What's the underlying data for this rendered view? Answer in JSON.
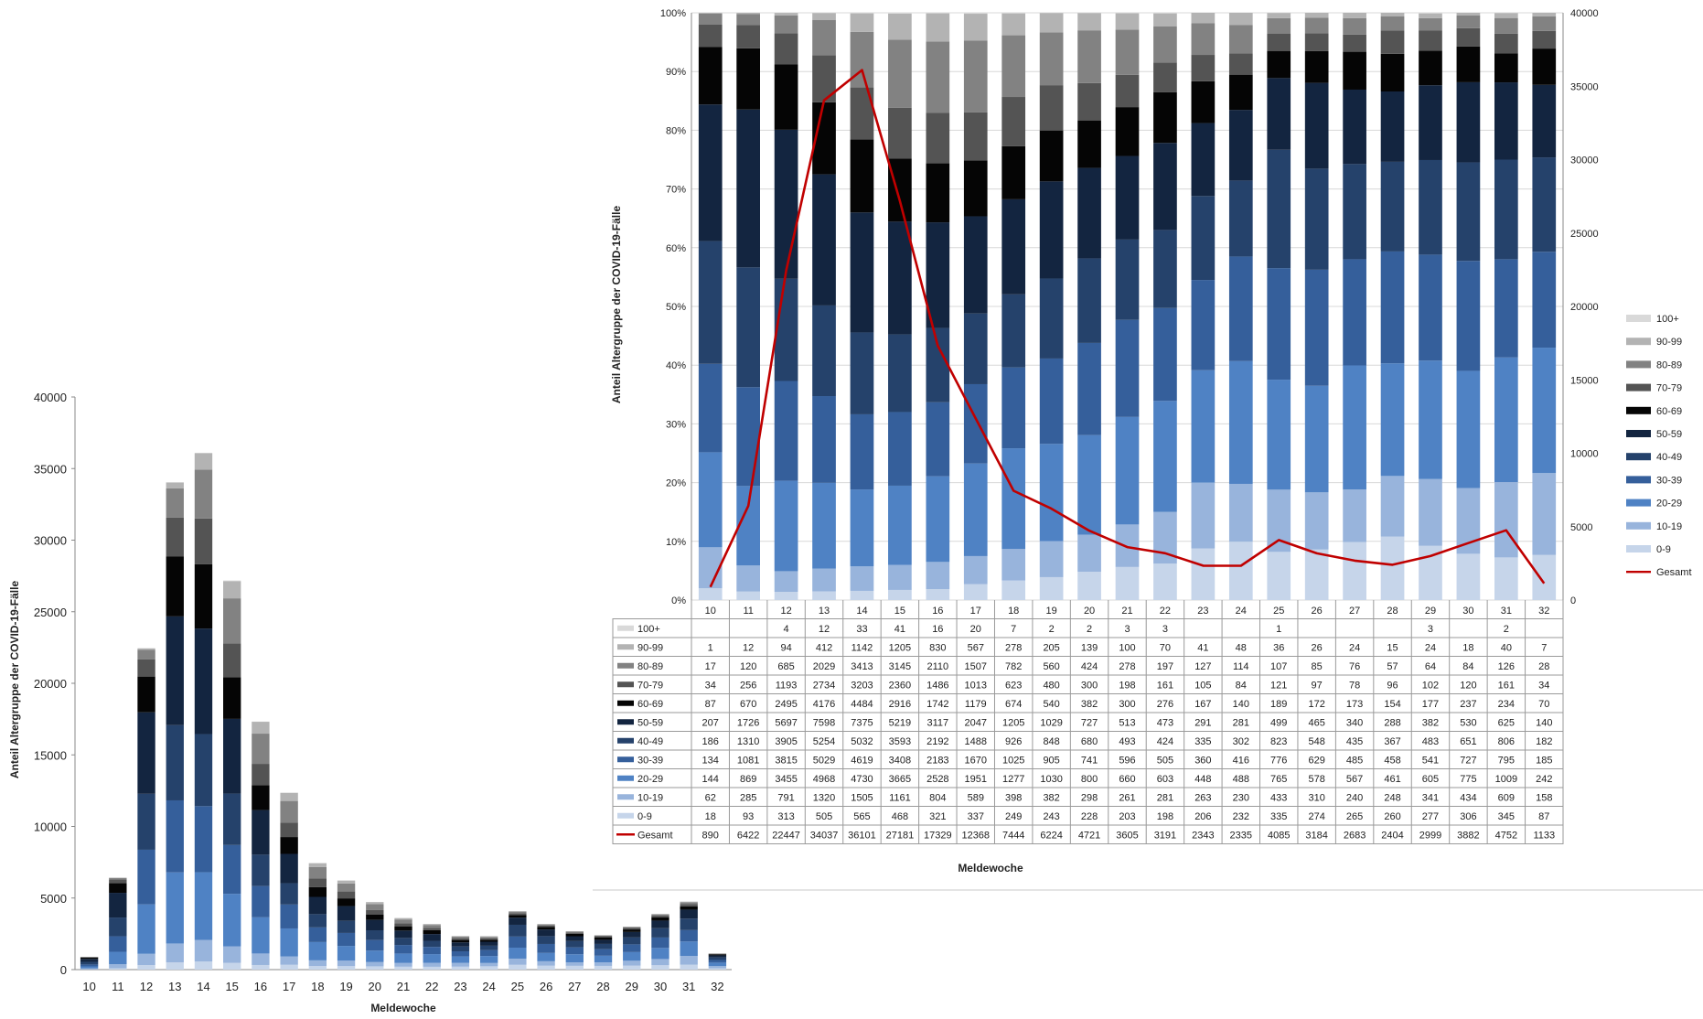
{
  "chart_data": [
    {
      "type": "bar",
      "stacked": true,
      "ylabel": "Anteil Altergruppe der COVID-19-Fälle",
      "xlabel": "Meldewoche",
      "ylim": [
        0,
        40000
      ],
      "yticks": [
        0,
        5000,
        10000,
        15000,
        20000,
        25000,
        30000,
        35000,
        40000
      ],
      "grid": false,
      "legend": "none",
      "categories": [
        "10",
        "11",
        "12",
        "13",
        "14",
        "15",
        "16",
        "17",
        "18",
        "19",
        "20",
        "21",
        "22",
        "23",
        "24",
        "25",
        "26",
        "27",
        "28",
        "29",
        "30",
        "31",
        "32"
      ],
      "series_ref": "shared_series"
    },
    {
      "type": "bar",
      "stacked": true,
      "normalized": true,
      "ylabel": "Anteil Altergruppe der COVID-19-Fälle",
      "xlabel": "Meldewoche",
      "ylim": [
        0,
        100
      ],
      "yticks": [
        "0%",
        "10%",
        "20%",
        "30%",
        "40%",
        "50%",
        "60%",
        "70%",
        "80%",
        "90%",
        "100%"
      ],
      "y2lim": [
        0,
        40000
      ],
      "y2ticks": [
        0,
        5000,
        10000,
        15000,
        20000,
        25000,
        30000,
        35000,
        40000
      ],
      "grid": true,
      "legend": "right",
      "data_table": true,
      "categories": [
        "10",
        "11",
        "12",
        "13",
        "14",
        "15",
        "16",
        "17",
        "18",
        "19",
        "20",
        "21",
        "22",
        "23",
        "24",
        "25",
        "26",
        "27",
        "28",
        "29",
        "30",
        "31",
        "32"
      ],
      "series": [
        {
          "name": "0-9",
          "color": "#c6d5ea",
          "values": [
            18,
            93,
            313,
            505,
            565,
            468,
            321,
            337,
            249,
            243,
            228,
            203,
            198,
            206,
            232,
            335,
            274,
            265,
            260,
            277,
            306,
            345,
            87
          ]
        },
        {
          "name": "10-19",
          "color": "#98b4dc",
          "values": [
            62,
            285,
            791,
            1320,
            1505,
            1161,
            804,
            589,
            398,
            382,
            298,
            261,
            281,
            263,
            230,
            433,
            310,
            240,
            248,
            341,
            434,
            609,
            158
          ]
        },
        {
          "name": "20-29",
          "color": "#4f82c4",
          "values": [
            144,
            869,
            3455,
            4968,
            4730,
            3665,
            2528,
            1951,
            1277,
            1030,
            800,
            660,
            603,
            448,
            488,
            765,
            578,
            567,
            461,
            605,
            775,
            1009,
            242
          ]
        },
        {
          "name": "30-39",
          "color": "#355f9b",
          "values": [
            134,
            1081,
            3815,
            5029,
            4619,
            3408,
            2183,
            1670,
            1025,
            905,
            741,
            596,
            505,
            360,
            416,
            776,
            629,
            485,
            458,
            541,
            727,
            795,
            185
          ]
        },
        {
          "name": "40-49",
          "color": "#25426b",
          "values": [
            186,
            1310,
            3905,
            5254,
            5032,
            3593,
            2192,
            1488,
            926,
            848,
            680,
            493,
            424,
            335,
            302,
            823,
            548,
            435,
            367,
            483,
            651,
            806,
            182
          ]
        },
        {
          "name": "50-59",
          "color": "#132540",
          "values": [
            207,
            1726,
            5697,
            7598,
            7375,
            5219,
            3117,
            2047,
            1205,
            1029,
            727,
            513,
            473,
            291,
            281,
            499,
            465,
            340,
            288,
            382,
            530,
            625,
            140
          ]
        },
        {
          "name": "60-69",
          "color": "#050505",
          "values": [
            87,
            670,
            2495,
            4176,
            4484,
            2916,
            1742,
            1179,
            674,
            540,
            382,
            300,
            276,
            167,
            140,
            189,
            172,
            173,
            154,
            177,
            237,
            234,
            70
          ]
        },
        {
          "name": "70-79",
          "color": "#545454",
          "values": [
            34,
            256,
            1193,
            2734,
            3203,
            2360,
            1486,
            1013,
            623,
            480,
            300,
            198,
            161,
            105,
            84,
            121,
            97,
            78,
            96,
            102,
            120,
            161,
            34
          ]
        },
        {
          "name": "80-89",
          "color": "#828282",
          "values": [
            17,
            120,
            685,
            2029,
            3413,
            3145,
            2110,
            1507,
            782,
            560,
            424,
            278,
            197,
            127,
            114,
            107,
            85,
            76,
            57,
            64,
            84,
            126,
            28
          ]
        },
        {
          "name": "90-99",
          "color": "#b3b3b3",
          "values": [
            1,
            12,
            94,
            412,
            1142,
            1205,
            830,
            567,
            278,
            205,
            139,
            100,
            70,
            41,
            48,
            36,
            26,
            24,
            15,
            24,
            18,
            40,
            7
          ]
        },
        {
          "name": "100+",
          "color": "#d9d9d9",
          "values": [
            null,
            null,
            4,
            12,
            33,
            41,
            16,
            20,
            7,
            2,
            2,
            3,
            3,
            null,
            null,
            1,
            null,
            null,
            null,
            3,
            null,
            2,
            null
          ]
        }
      ],
      "line": {
        "name": "Gesamt",
        "color": "#c00000",
        "axis": "right",
        "values": [
          890,
          6422,
          22447,
          34037,
          36101,
          27181,
          17329,
          12368,
          7444,
          6224,
          4721,
          3605,
          3191,
          2343,
          2335,
          4085,
          3184,
          2683,
          2404,
          2999,
          3882,
          4752,
          1133
        ]
      }
    }
  ]
}
